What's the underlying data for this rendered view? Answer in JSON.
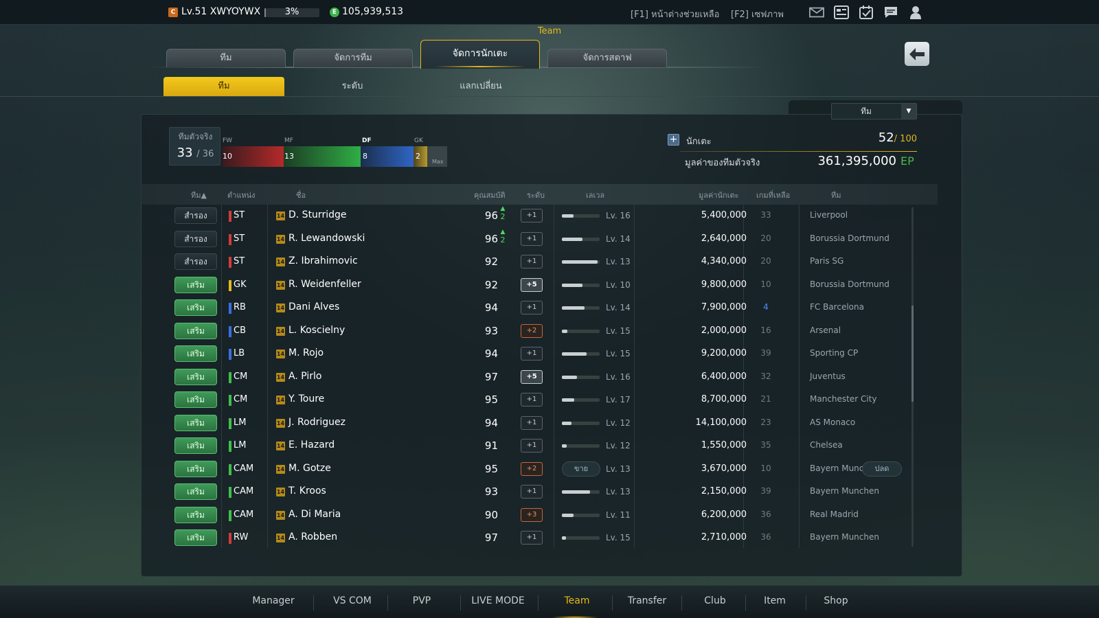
{
  "topbar": {
    "level_badge": "C",
    "level_text": "Lv.51 XWYOYWX",
    "exp_percent": "3%",
    "exp_fraction": 0.03,
    "currency_badge": "E",
    "currency": "105,939,513",
    "help_text": "[F1] หน้าต่างช่วยเหลือ",
    "screenshot_text": "[F2] เซฟภาพ",
    "icons": [
      "mail-icon",
      "news-icon",
      "calendar-check-icon",
      "chat-icon",
      "profile-icon"
    ]
  },
  "section_title": "Team",
  "tabs": [
    {
      "label": "ทีม",
      "active": false
    },
    {
      "label": "จัดการทีม",
      "active": false
    },
    {
      "label": "จัดการนักเตะ",
      "active": true
    },
    {
      "label": "จัดการสตาฟ",
      "active": false
    }
  ],
  "subtabs": [
    {
      "label": "ทีม",
      "active": true
    },
    {
      "label": "ระดับ",
      "active": false
    },
    {
      "label": "แลกเปลี่ยน",
      "active": false
    }
  ],
  "filter": {
    "selected": "ทีม"
  },
  "squad": {
    "label": "ทีมตัวจริง",
    "count": "33",
    "total": "/ 36"
  },
  "positions": [
    {
      "label": "FW",
      "count": "10"
    },
    {
      "label": "MF",
      "count": "13"
    },
    {
      "label": "DF",
      "count": "8"
    },
    {
      "label": "GK",
      "count": "2"
    }
  ],
  "max_label": "Max",
  "summary": {
    "players_label": "นักเตะ",
    "players_count": "52",
    "players_max": "/ 100",
    "value_label": "มูลค่าของทีมตัวจริง",
    "value_amount": "361,395,000",
    "value_unit": "EP"
  },
  "columns": {
    "team": "ทีม▲",
    "position": "ตำแหน่ง",
    "name": "ชื่อ",
    "ovr": "คุณสมบัติ",
    "grade": "ระดับ",
    "level": "เลเวล",
    "value": "มูลค่านักเตะ",
    "games": "เกมที่เหลือ",
    "club": "ทีม"
  },
  "actions": {
    "sell": "ขาย",
    "release": "ปลด"
  },
  "players": [
    {
      "status": "สำรอง",
      "starter": false,
      "pos": "ST",
      "pos_color": "#d63a3a",
      "season": "14",
      "name": "D. Sturridge",
      "ovr": "96",
      "ovr_up": "2",
      "grade": "+1",
      "grade_type": "g1",
      "level_progress": 0.3,
      "level": "Lv. 16",
      "value": "5,400,000",
      "games": "33",
      "club": "Liverpool"
    },
    {
      "status": "สำรอง",
      "starter": false,
      "pos": "ST",
      "pos_color": "#d63a3a",
      "season": "14",
      "name": "R. Lewandowski",
      "ovr": "96",
      "ovr_up": "2",
      "grade": "+1",
      "grade_type": "g1",
      "level_progress": 0.55,
      "level": "Lv. 14",
      "value": "2,640,000",
      "games": "20",
      "club": "Borussia Dortmund"
    },
    {
      "status": "สำรอง",
      "starter": false,
      "pos": "ST",
      "pos_color": "#d63a3a",
      "season": "14",
      "name": "Z. Ibrahimovic",
      "ovr": "92",
      "ovr_up": "",
      "grade": "+1",
      "grade_type": "g1",
      "level_progress": 0.95,
      "level": "Lv. 13",
      "value": "4,340,000",
      "games": "20",
      "club": "Paris SG"
    },
    {
      "status": "เสริม",
      "starter": true,
      "pos": "GK",
      "pos_color": "#e7b71a",
      "season": "14",
      "name": "R. Weidenfeller",
      "ovr": "92",
      "ovr_up": "",
      "grade": "+5",
      "grade_type": "g5",
      "level_progress": 0.55,
      "level": "Lv. 10",
      "value": "9,800,000",
      "games": "10",
      "club": "Borussia Dortmund"
    },
    {
      "status": "เสริม",
      "starter": true,
      "pos": "RB",
      "pos_color": "#3a6fe0",
      "season": "14",
      "name": "Dani Alves",
      "ovr": "94",
      "ovr_up": "",
      "grade": "+1",
      "grade_type": "g1",
      "level_progress": 0.6,
      "level": "Lv. 14",
      "value": "7,900,000",
      "games": "4",
      "club": "FC Barcelona"
    },
    {
      "status": "เสริม",
      "starter": true,
      "pos": "CB",
      "pos_color": "#3a6fe0",
      "season": "14",
      "name": "L. Koscielny",
      "ovr": "93",
      "ovr_up": "",
      "grade": "+2",
      "grade_type": "g2",
      "level_progress": 0.15,
      "level": "Lv. 15",
      "value": "2,000,000",
      "games": "16",
      "club": "Arsenal"
    },
    {
      "status": "เสริม",
      "starter": true,
      "pos": "LB",
      "pos_color": "#3a6fe0",
      "season": "14",
      "name": "M. Rojo",
      "ovr": "94",
      "ovr_up": "",
      "grade": "+1",
      "grade_type": "g1",
      "level_progress": 0.65,
      "level": "Lv. 15",
      "value": "9,200,000",
      "games": "39",
      "club": "Sporting CP"
    },
    {
      "status": "เสริม",
      "starter": true,
      "pos": "CM",
      "pos_color": "#3fbf4a",
      "season": "14",
      "name": "A. Pirlo",
      "ovr": "97",
      "ovr_up": "",
      "grade": "+5",
      "grade_type": "g5",
      "level_progress": 0.4,
      "level": "Lv. 16",
      "value": "6,400,000",
      "games": "32",
      "club": "Juventus"
    },
    {
      "status": "เสริม",
      "starter": true,
      "pos": "CM",
      "pos_color": "#3fbf4a",
      "season": "14",
      "name": "Y. Toure",
      "ovr": "95",
      "ovr_up": "",
      "grade": "+1",
      "grade_type": "g1",
      "level_progress": 0.32,
      "level": "Lv. 17",
      "value": "8,700,000",
      "games": "21",
      "club": "Manchester City"
    },
    {
      "status": "เสริม",
      "starter": true,
      "pos": "LM",
      "pos_color": "#3fbf4a",
      "season": "14",
      "name": "J. Rodriguez",
      "ovr": "94",
      "ovr_up": "",
      "grade": "+1",
      "grade_type": "g1",
      "level_progress": 0.25,
      "level": "Lv. 12",
      "value": "14,100,000",
      "games": "23",
      "club": "AS Monaco"
    },
    {
      "status": "เสริม",
      "starter": true,
      "pos": "LM",
      "pos_color": "#3fbf4a",
      "season": "14",
      "name": "E. Hazard",
      "ovr": "91",
      "ovr_up": "",
      "grade": "+1",
      "grade_type": "g1",
      "level_progress": 0.12,
      "level": "Lv. 12",
      "value": "1,550,000",
      "games": "35",
      "club": "Chelsea"
    },
    {
      "status": "เสริม",
      "starter": true,
      "pos": "CAM",
      "pos_color": "#3fbf4a",
      "season": "14",
      "name": "M. Gotze",
      "ovr": "95",
      "ovr_up": "",
      "grade": "+2",
      "grade_type": "g2",
      "level_progress": 0.5,
      "level": "Lv. 13",
      "value": "3,670,000",
      "games": "10",
      "club": "Bayern Munc",
      "hover": true
    },
    {
      "status": "เสริม",
      "starter": true,
      "pos": "CAM",
      "pos_color": "#3fbf4a",
      "season": "14",
      "name": "T. Kroos",
      "ovr": "93",
      "ovr_up": "",
      "grade": "+1",
      "grade_type": "g1",
      "level_progress": 0.75,
      "level": "Lv. 13",
      "value": "2,150,000",
      "games": "39",
      "club": "Bayern Munchen"
    },
    {
      "status": "เสริม",
      "starter": true,
      "pos": "CAM",
      "pos_color": "#3fbf4a",
      "season": "14",
      "name": "A. Di Maria",
      "ovr": "90",
      "ovr_up": "",
      "grade": "+3",
      "grade_type": "g3",
      "level_progress": 0.3,
      "level": "Lv. 11",
      "value": "6,200,000",
      "games": "36",
      "club": "Real Madrid"
    },
    {
      "status": "เสริม",
      "starter": true,
      "pos": "RW",
      "pos_color": "#d63a3a",
      "season": "14",
      "name": "A. Robben",
      "ovr": "97",
      "ovr_up": "",
      "grade": "+1",
      "grade_type": "g1",
      "level_progress": 0.1,
      "level": "Lv. 15",
      "value": "2,710,000",
      "games": "36",
      "club": "Bayern Munchen"
    }
  ],
  "bottom_nav": [
    {
      "label": "Manager",
      "active": false
    },
    {
      "label": "VS COM",
      "active": false
    },
    {
      "label": "PVP",
      "active": false
    },
    {
      "label": "LIVE MODE",
      "active": false
    },
    {
      "label": "Team",
      "active": true
    },
    {
      "label": "Transfer",
      "active": false
    },
    {
      "label": "Club",
      "active": false
    },
    {
      "label": "Item",
      "active": false
    },
    {
      "label": "Shop",
      "active": false
    }
  ]
}
